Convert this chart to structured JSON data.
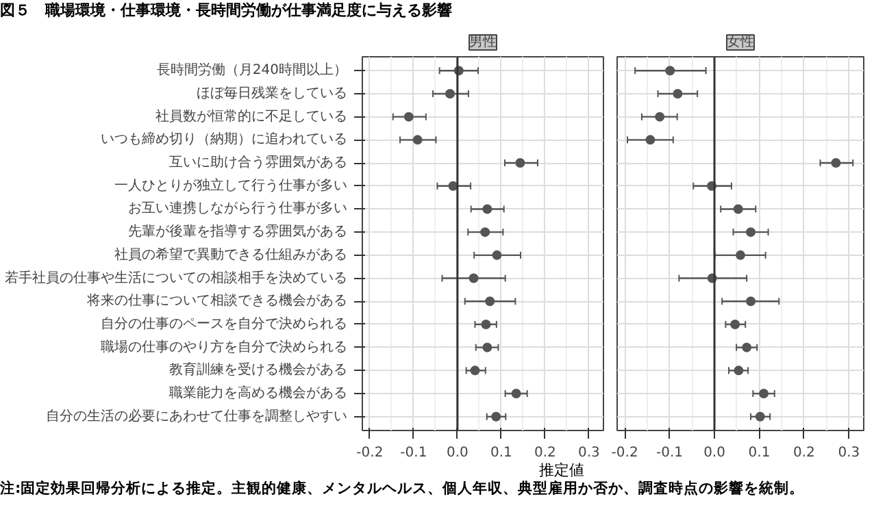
{
  "chart_data": [
    {
      "type": "scatter",
      "title": "図５　職場環境・仕事環境・長時間労働が仕事満足度に与える影響",
      "subtitle": "男性",
      "xlabel": "推定値",
      "orientation": "horizontal",
      "categories": [
        "長時間労働（月240時間以上）",
        "ほぼ毎日残業をしている",
        "社員数が恒常的に不足している",
        "いつも締め切り（納期）に追われている",
        "互いに助け合う雰囲気がある",
        "一人ひとりが独立して行う仕事が多い",
        "お互い連携しながら行う仕事が多い",
        "先輩が後輩を指導する雰囲気がある",
        "社員の希望で異動できる仕組みがある",
        "若手社員の仕事や生活についての相談相手を決めている",
        "将来の仕事について相談できる機会がある",
        "自分の仕事のペースを自分で決められる",
        "職場の仕事のやり方を自分で決められる",
        "教育訓練を受ける機会がある",
        "職業能力を高める機会がある",
        "自分の生活の必要にあわせて仕事を調整しやすい"
      ],
      "series": [
        {
          "color": "#555555",
          "values": [
            0.003,
            -0.017,
            -0.111,
            -0.091,
            0.143,
            -0.01,
            0.068,
            0.063,
            0.09,
            0.037,
            0.074,
            0.065,
            0.068,
            0.04,
            0.134,
            0.088
          ],
          "errors": [
            [
              -0.041,
              0.047
            ],
            [
              -0.056,
              0.025
            ],
            [
              -0.147,
              -0.072
            ],
            [
              -0.131,
              -0.049
            ],
            [
              0.108,
              0.183
            ],
            [
              -0.046,
              0.03
            ],
            [
              0.031,
              0.106
            ],
            [
              0.024,
              0.104
            ],
            [
              0.038,
              0.144
            ],
            [
              -0.035,
              0.109
            ],
            [
              0.017,
              0.132
            ],
            [
              0.04,
              0.089
            ],
            [
              0.042,
              0.093
            ],
            [
              0.02,
              0.064
            ],
            [
              0.109,
              0.159
            ],
            [
              0.067,
              0.11
            ]
          ]
        }
      ],
      "xlim": [
        -0.217,
        0.333
      ],
      "xticks": [
        {
          "value": -0.2,
          "label": "-0.2"
        },
        {
          "value": -0.1,
          "label": "-0.1"
        },
        {
          "value": 0,
          "label": "0.0"
        },
        {
          "value": 0.1,
          "label": "0.1"
        },
        {
          "value": 0.2,
          "label": "0.2"
        },
        {
          "value": 0.3,
          "label": "0.3"
        }
      ],
      "ref_lines": [
        {
          "axis": "x",
          "value": 0,
          "color": "#333333"
        }
      ],
      "grid": true,
      "marker": "circle"
    },
    {
      "type": "scatter",
      "subtitle": "女性",
      "orientation": "horizontal",
      "tick_labels": "x",
      "categories": [
        null,
        null,
        null,
        null,
        null,
        null,
        null,
        null,
        null,
        null,
        null,
        null,
        null,
        null,
        null,
        null
      ],
      "series": [
        {
          "color": "#555555",
          "values": [
            -0.099,
            -0.082,
            -0.122,
            -0.143,
            0.271,
            -0.006,
            0.053,
            0.081,
            0.058,
            -0.005,
            0.081,
            0.046,
            0.072,
            0.054,
            0.11,
            0.102
          ],
          "errors": [
            [
              -0.177,
              -0.019
            ],
            [
              -0.126,
              -0.038
            ],
            [
              -0.162,
              -0.083
            ],
            [
              -0.194,
              -0.092
            ],
            [
              0.236,
              0.309
            ],
            [
              -0.047,
              0.038
            ],
            [
              0.014,
              0.092
            ],
            [
              0.042,
              0.12
            ],
            [
              0.001,
              0.114
            ],
            [
              -0.079,
              0.072
            ],
            [
              0.017,
              0.144
            ],
            [
              0.025,
              0.069
            ],
            [
              0.049,
              0.095
            ],
            [
              0.032,
              0.075
            ],
            [
              0.086,
              0.134
            ],
            [
              0.081,
              0.124
            ]
          ]
        }
      ],
      "xlim": [
        -0.217,
        0.333
      ],
      "xticks": [
        {
          "value": -0.2,
          "label": "-0.2"
        },
        {
          "value": -0.1,
          "label": "-0.1"
        },
        {
          "value": 0,
          "label": "0.0"
        },
        {
          "value": 0.1,
          "label": "0.1"
        },
        {
          "value": 0.2,
          "label": "0.2"
        },
        {
          "value": 0.3,
          "label": "0.3"
        }
      ],
      "ref_lines": [
        {
          "axis": "x",
          "value": 0,
          "color": "#333333"
        }
      ],
      "grid": true,
      "marker": "circle",
      "annotations": [
        "注:固定効果回帰分析による推定。主観的健康、メンタルヘルス、個人年収、典型雇用か否か、調査時点の影響を統制。"
      ]
    }
  ]
}
